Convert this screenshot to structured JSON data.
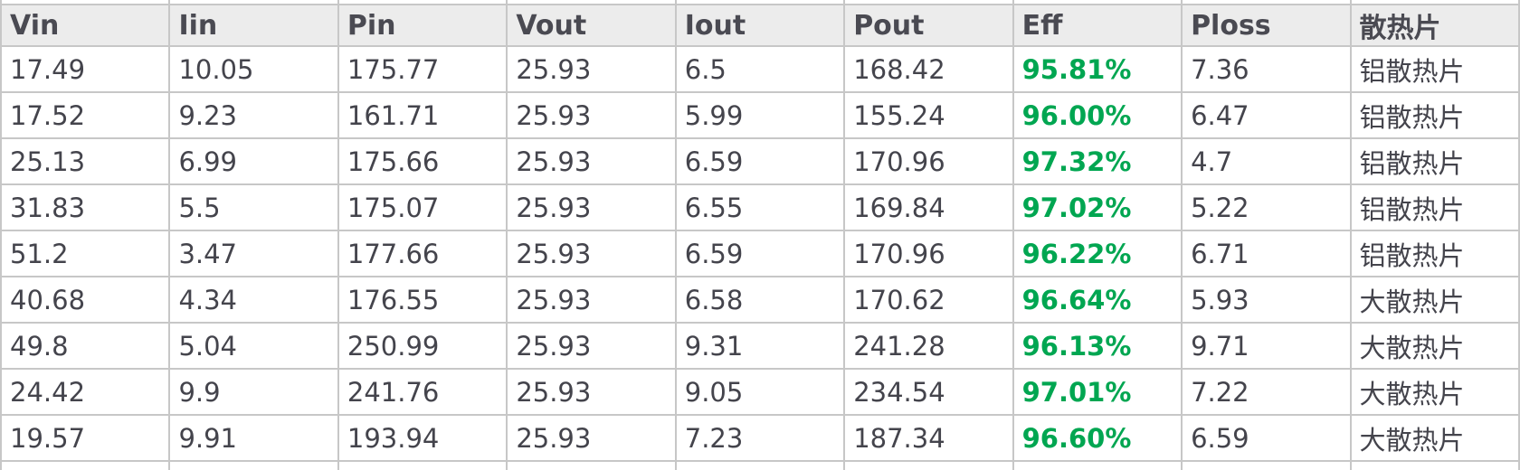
{
  "table": {
    "columns": [
      "Vin",
      "Iin",
      "Pin",
      "Vout",
      "Iout",
      "Pout",
      "Eff",
      "Ploss",
      "散热片"
    ],
    "column_keys": [
      "vin",
      "iin",
      "pin",
      "vout",
      "iout",
      "pout",
      "eff",
      "ploss",
      "heatsink"
    ],
    "eff_column_index": 6,
    "rows": [
      [
        "17.49",
        "10.05",
        "175.77",
        "25.93",
        "6.5",
        "168.42",
        "95.81%",
        "7.36",
        "铝散热片"
      ],
      [
        "17.52",
        "9.23",
        "161.71",
        "25.93",
        "5.99",
        "155.24",
        "96.00%",
        "6.47",
        "铝散热片"
      ],
      [
        "25.13",
        "6.99",
        "175.66",
        "25.93",
        "6.59",
        "170.96",
        "97.32%",
        "4.7",
        "铝散热片"
      ],
      [
        "31.83",
        "5.5",
        "175.07",
        "25.93",
        "6.55",
        "169.84",
        "97.02%",
        "5.22",
        "铝散热片"
      ],
      [
        "51.2",
        "3.47",
        "177.66",
        "25.93",
        "6.59",
        "170.96",
        "96.22%",
        "6.71",
        "铝散热片"
      ],
      [
        "40.68",
        "4.34",
        "176.55",
        "25.93",
        "6.58",
        "170.62",
        "96.64%",
        "5.93",
        "大散热片"
      ],
      [
        "49.8",
        "5.04",
        "250.99",
        "25.93",
        "9.31",
        "241.28",
        "96.13%",
        "9.71",
        "大散热片"
      ],
      [
        "24.42",
        "9.9",
        "241.76",
        "25.93",
        "9.05",
        "234.54",
        "97.01%",
        "7.22",
        "大散热片"
      ],
      [
        "19.57",
        "9.91",
        "193.94",
        "25.93",
        "7.23",
        "187.34",
        "96.60%",
        "6.59",
        "大散热片"
      ]
    ]
  },
  "colors": {
    "eff_text": "#00a651",
    "header_bg": "#ececec",
    "header_text": "#4a4a52",
    "body_text": "#44444c",
    "border": "#c7c7c7"
  }
}
